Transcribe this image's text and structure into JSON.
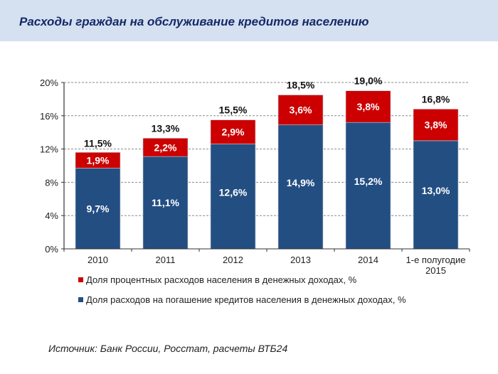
{
  "header": {
    "title": "Расходы граждан на обслуживание кредитов населению"
  },
  "colors": {
    "header_bg": "#d5e0f0",
    "title": "#142a68",
    "interest": "#cc0000",
    "repayment": "#234e82"
  },
  "chart_data": {
    "type": "bar",
    "stacked": true,
    "title": "Расходы граждан на обслуживание кредитов населению",
    "xlabel": "",
    "ylabel": "",
    "ylim": [
      0,
      20
    ],
    "yticks": [
      0,
      4,
      8,
      12,
      16,
      20
    ],
    "ytick_labels": [
      "0%",
      "4%",
      "8%",
      "12%",
      "16%",
      "20%"
    ],
    "grid": true,
    "categories": [
      "2010",
      "2011",
      "2012",
      "2013",
      "2014",
      "1-е полугодие 2015"
    ],
    "category_lines": [
      [
        "2010"
      ],
      [
        "2011"
      ],
      [
        "2012"
      ],
      [
        "2013"
      ],
      [
        "2014"
      ],
      [
        "1-е полугодие",
        "2015"
      ]
    ],
    "series": [
      {
        "name": "Доля расходов на погашение кредитов населения в денежных доходах, %",
        "color": "#234e82",
        "values": [
          9.7,
          11.1,
          12.6,
          14.9,
          15.2,
          13.0
        ],
        "labels": [
          "9,7%",
          "11,1%",
          "12,6%",
          "14,9%",
          "15,2%",
          "13,0%"
        ]
      },
      {
        "name": "Доля процентных расходов населения в денежных доходах, %",
        "color": "#cc0000",
        "values": [
          1.9,
          2.2,
          2.9,
          3.6,
          3.8,
          3.8
        ],
        "labels": [
          "1,9%",
          "2,2%",
          "2,9%",
          "3,6%",
          "3,8%",
          "3,8%"
        ]
      }
    ],
    "totals": [
      11.5,
      13.3,
      15.5,
      18.5,
      19.0,
      16.8
    ],
    "total_labels": [
      "11,5%",
      "13,3%",
      "15,5%",
      "18,5%",
      "19,0%",
      "16,8%"
    ],
    "legend": {
      "placement": "bottom",
      "entries": [
        "Доля процентных расходов населения в денежных доходах, %",
        "Доля расходов на погашение кредитов населения в денежных доходах, %"
      ]
    }
  },
  "source": "Источник: Банк России, Росстат, расчеты ВТБ24"
}
